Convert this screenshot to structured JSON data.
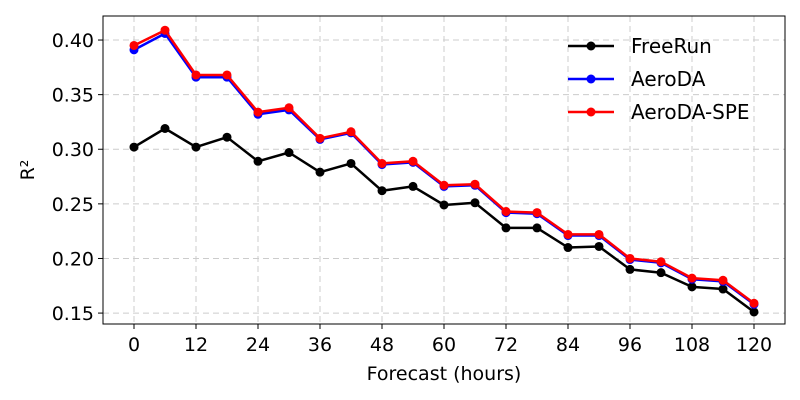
{
  "chart_data": {
    "type": "line",
    "xlabel": "Forecast (hours)",
    "ylabel": "R²",
    "x": [
      0,
      6,
      12,
      18,
      24,
      30,
      36,
      42,
      48,
      54,
      60,
      66,
      72,
      78,
      84,
      90,
      96,
      102,
      108,
      114,
      120
    ],
    "xticks": [
      0,
      12,
      24,
      36,
      48,
      60,
      72,
      84,
      96,
      108,
      120
    ],
    "xtick_labels": [
      "0",
      "12",
      "24",
      "36",
      "48",
      "60",
      "72",
      "84",
      "96",
      "108",
      "120"
    ],
    "yticks": [
      0.15,
      0.2,
      0.25,
      0.3,
      0.35,
      0.4
    ],
    "ytick_labels": [
      "0.15",
      "0.20",
      "0.25",
      "0.30",
      "0.35",
      "0.40"
    ],
    "xlim": [
      -6,
      126
    ],
    "ylim": [
      0.14,
      0.422
    ],
    "grid": true,
    "legend_position": "top-right",
    "series": [
      {
        "name": "FreeRun",
        "color": "#000000",
        "values": [
          0.302,
          0.319,
          0.302,
          0.311,
          0.289,
          0.297,
          0.279,
          0.287,
          0.262,
          0.266,
          0.249,
          0.251,
          0.228,
          0.228,
          0.21,
          0.211,
          0.19,
          0.187,
          0.174,
          0.172,
          0.151
        ]
      },
      {
        "name": "AeroDA",
        "color": "#0000ff",
        "values": [
          0.391,
          0.406,
          0.366,
          0.366,
          0.332,
          0.336,
          0.309,
          0.315,
          0.286,
          0.288,
          0.266,
          0.267,
          0.242,
          0.241,
          0.221,
          0.221,
          0.199,
          0.196,
          0.181,
          0.179,
          0.158
        ]
      },
      {
        "name": "AeroDA-SPE",
        "color": "#ff0000",
        "values": [
          0.395,
          0.409,
          0.368,
          0.368,
          0.334,
          0.338,
          0.31,
          0.316,
          0.287,
          0.289,
          0.267,
          0.268,
          0.243,
          0.242,
          0.222,
          0.222,
          0.2,
          0.197,
          0.182,
          0.18,
          0.159
        ]
      }
    ]
  }
}
